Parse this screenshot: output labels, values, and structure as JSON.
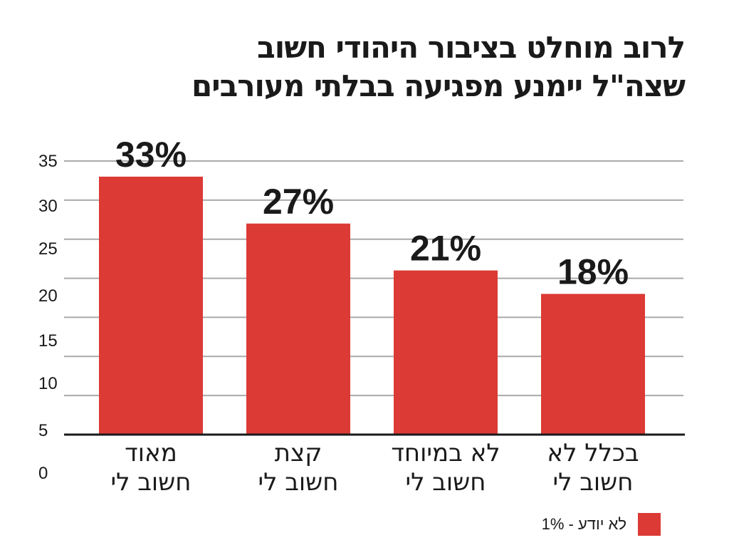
{
  "title_lines": [
    "לרוב מוחלט בציבור היהודי חשוב",
    "שצה\"ל יימנע מפגיעה בבלתי מעורבים"
  ],
  "legend": {
    "text": "לא יודע - 1%",
    "color": "#dc3a35"
  },
  "colors": {
    "bar": "#dc3a35",
    "grid": "#aaaaaa",
    "axis": "#1a1a1a",
    "text": "#1a1a1a"
  },
  "chart_data": {
    "type": "bar",
    "title": "לרוב מוחלט בציבור היהודי חשוב שצה\"ל יימנע מפגיעה בבלתי מעורבים",
    "categories": [
      [
        "מאוד",
        "חשוב לי"
      ],
      [
        "קצת",
        "חשוב לי"
      ],
      [
        "לא במיוחד",
        "חשוב לי"
      ],
      [
        "בכלל לא",
        "חשוב לי"
      ]
    ],
    "values": [
      33,
      27,
      21,
      18
    ],
    "data_labels": [
      "33%",
      "27%",
      "21%",
      "18%"
    ],
    "yticks": [
      "0",
      "5",
      "10",
      "15",
      "20",
      "25",
      "30",
      "35"
    ],
    "ylim": [
      0,
      35
    ],
    "grid": true,
    "legend_position": "bottom-right"
  }
}
